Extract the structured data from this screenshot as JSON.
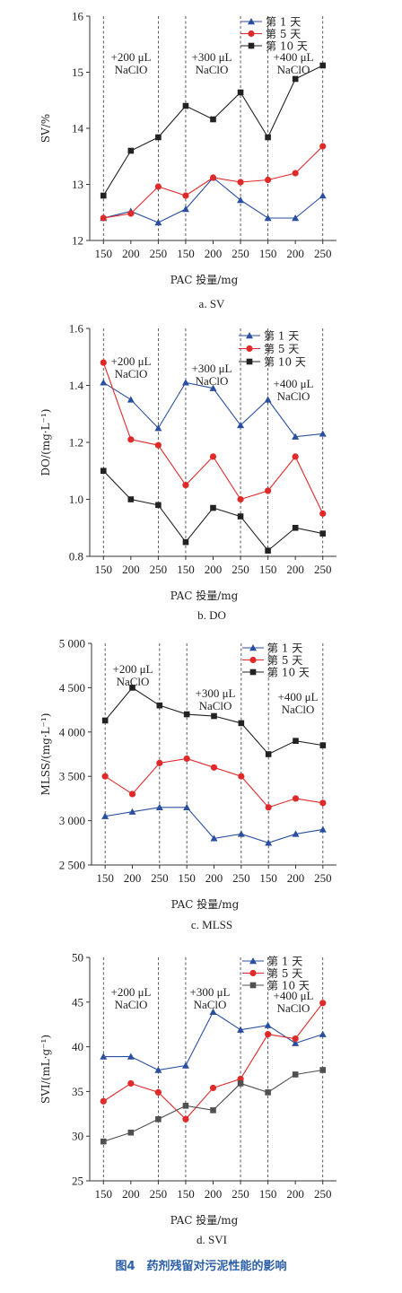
{
  "figure_caption": "图4　药剂残留对污泥性能的影响",
  "colors": {
    "day1": "#2b4fa0",
    "day5": "#e02a2a",
    "day10": "#222222",
    "day10_svi": "#505050",
    "axis": "#333333"
  },
  "chart_data": [
    {
      "type": "line",
      "caption": "a. SV",
      "categories": [
        "150",
        "200",
        "250",
        "150",
        "200",
        "250",
        "150",
        "200",
        "250"
      ],
      "xlabel": "PAC 投量/mg",
      "ylabel": "SV/%",
      "ylim": [
        11.5,
        16.5
      ],
      "yticks": [
        "12",
        "13",
        "14",
        "15",
        "16"
      ],
      "annotations": [
        {
          "line1": "+200 μL",
          "line2": "NaClO",
          "group": 0
        },
        {
          "line1": "+300 μL",
          "line2": "NaClO",
          "group": 1
        },
        {
          "line1": "+400 μL",
          "line2": "NaClO",
          "group": 2
        }
      ],
      "legend_position": "top-right",
      "series": [
        {
          "name": "第 1 天",
          "marker": "triangle",
          "values": [
            12.0,
            12.15,
            11.9,
            12.2,
            12.9,
            12.4,
            12.0,
            12.0,
            12.5
          ]
        },
        {
          "name": "第 5 天",
          "marker": "circle",
          "values": [
            12.0,
            12.1,
            12.7,
            12.5,
            12.9,
            12.8,
            12.85,
            13.0,
            13.6
          ]
        },
        {
          "name": "第 10 天",
          "marker": "square",
          "values": [
            12.5,
            13.5,
            13.8,
            14.5,
            14.2,
            14.8,
            13.8,
            15.1,
            15.4
          ]
        }
      ]
    },
    {
      "type": "line",
      "caption": "b. DO",
      "categories": [
        "150",
        "200",
        "250",
        "150",
        "200",
        "250",
        "150",
        "200",
        "250"
      ],
      "xlabel": "PAC 投量/mg",
      "ylabel": "DO/(mg·L⁻¹)",
      "ylim": [
        0.8,
        1.6
      ],
      "yticks": [
        "0.8",
        "1.0",
        "1.2",
        "1.4",
        "1.6"
      ],
      "annotations": [
        {
          "line1": "+200 μL",
          "line2": "NaClO",
          "group": 0
        },
        {
          "line1": "+300 μL",
          "line2": "NaClO",
          "group": 1
        },
        {
          "line1": "+400 μL",
          "line2": "NaClO",
          "group": 2
        }
      ],
      "legend_position": "top-right",
      "series": [
        {
          "name": "第 1 天",
          "marker": "triangle",
          "values": [
            1.41,
            1.35,
            1.25,
            1.41,
            1.39,
            1.26,
            1.35,
            1.22,
            1.23
          ]
        },
        {
          "name": "第 5 天",
          "marker": "circle",
          "values": [
            1.48,
            1.21,
            1.19,
            1.05,
            1.15,
            1.0,
            1.03,
            1.15,
            0.95
          ]
        },
        {
          "name": "第 10 天",
          "marker": "square",
          "values": [
            1.1,
            1.0,
            0.98,
            0.85,
            0.97,
            0.94,
            0.82,
            0.9,
            0.88
          ]
        }
      ]
    },
    {
      "type": "line",
      "caption": "c. MLSS",
      "categories": [
        "150",
        "200",
        "250",
        "150",
        "200",
        "250",
        "150",
        "200",
        "250"
      ],
      "xlabel": "PAC 投量/mg",
      "ylabel": "MLSS/(mg·L⁻¹)",
      "ylim": [
        2500,
        5000
      ],
      "yticks": [
        "2 500",
        "3 000",
        "3 500",
        "4 000",
        "4 500",
        "5 000"
      ],
      "annotations": [
        {
          "line1": "+200 μL",
          "line2": "NaClO",
          "group": 0
        },
        {
          "line1": "+300 μL",
          "line2": "NaClO",
          "group": 1
        },
        {
          "line1": "+400 μL",
          "line2": "NaClO",
          "group": 2
        }
      ],
      "legend_position": "top-right",
      "series": [
        {
          "name": "第 1 天",
          "marker": "triangle",
          "values": [
            3050,
            3100,
            3150,
            3150,
            2800,
            2850,
            2750,
            2850,
            2900
          ]
        },
        {
          "name": "第 5 天",
          "marker": "circle",
          "values": [
            3500,
            3300,
            3650,
            3700,
            3600,
            3500,
            3150,
            3250,
            3200
          ]
        },
        {
          "name": "第 10 天",
          "marker": "square",
          "values": [
            4130,
            4500,
            4300,
            4200,
            4180,
            4100,
            3750,
            3900,
            3850
          ]
        }
      ]
    },
    {
      "type": "line",
      "caption": "d. SVI",
      "categories": [
        "150",
        "200",
        "250",
        "150",
        "200",
        "250",
        "150",
        "200",
        "250"
      ],
      "xlabel": "PAC 投量/mg",
      "ylabel": "SVI/(mL·g⁻¹)",
      "ylim": [
        25,
        50
      ],
      "yticks": [
        "25",
        "30",
        "35",
        "40",
        "45",
        "50"
      ],
      "annotations": [
        {
          "line1": "+200 μL",
          "line2": "NaClO",
          "group": 0
        },
        {
          "line1": "+300 μL",
          "line2": "NaClO",
          "group": 1
        },
        {
          "line1": "+400 μL",
          "line2": "NaClO",
          "group": 2
        }
      ],
      "legend_position": "top-right",
      "series": [
        {
          "name": "第 1 天",
          "marker": "triangle",
          "values": [
            38.9,
            38.9,
            37.4,
            37.9,
            43.9,
            41.9,
            42.4,
            40.4,
            41.4
          ]
        },
        {
          "name": "第 5 天",
          "marker": "circle",
          "values": [
            33.9,
            35.9,
            34.9,
            31.9,
            35.4,
            36.4,
            41.4,
            40.9,
            44.9
          ]
        },
        {
          "name": "第 10 天",
          "marker": "square",
          "values": [
            29.4,
            30.4,
            31.9,
            33.4,
            32.9,
            35.9,
            34.9,
            36.9,
            37.4
          ]
        }
      ]
    }
  ]
}
